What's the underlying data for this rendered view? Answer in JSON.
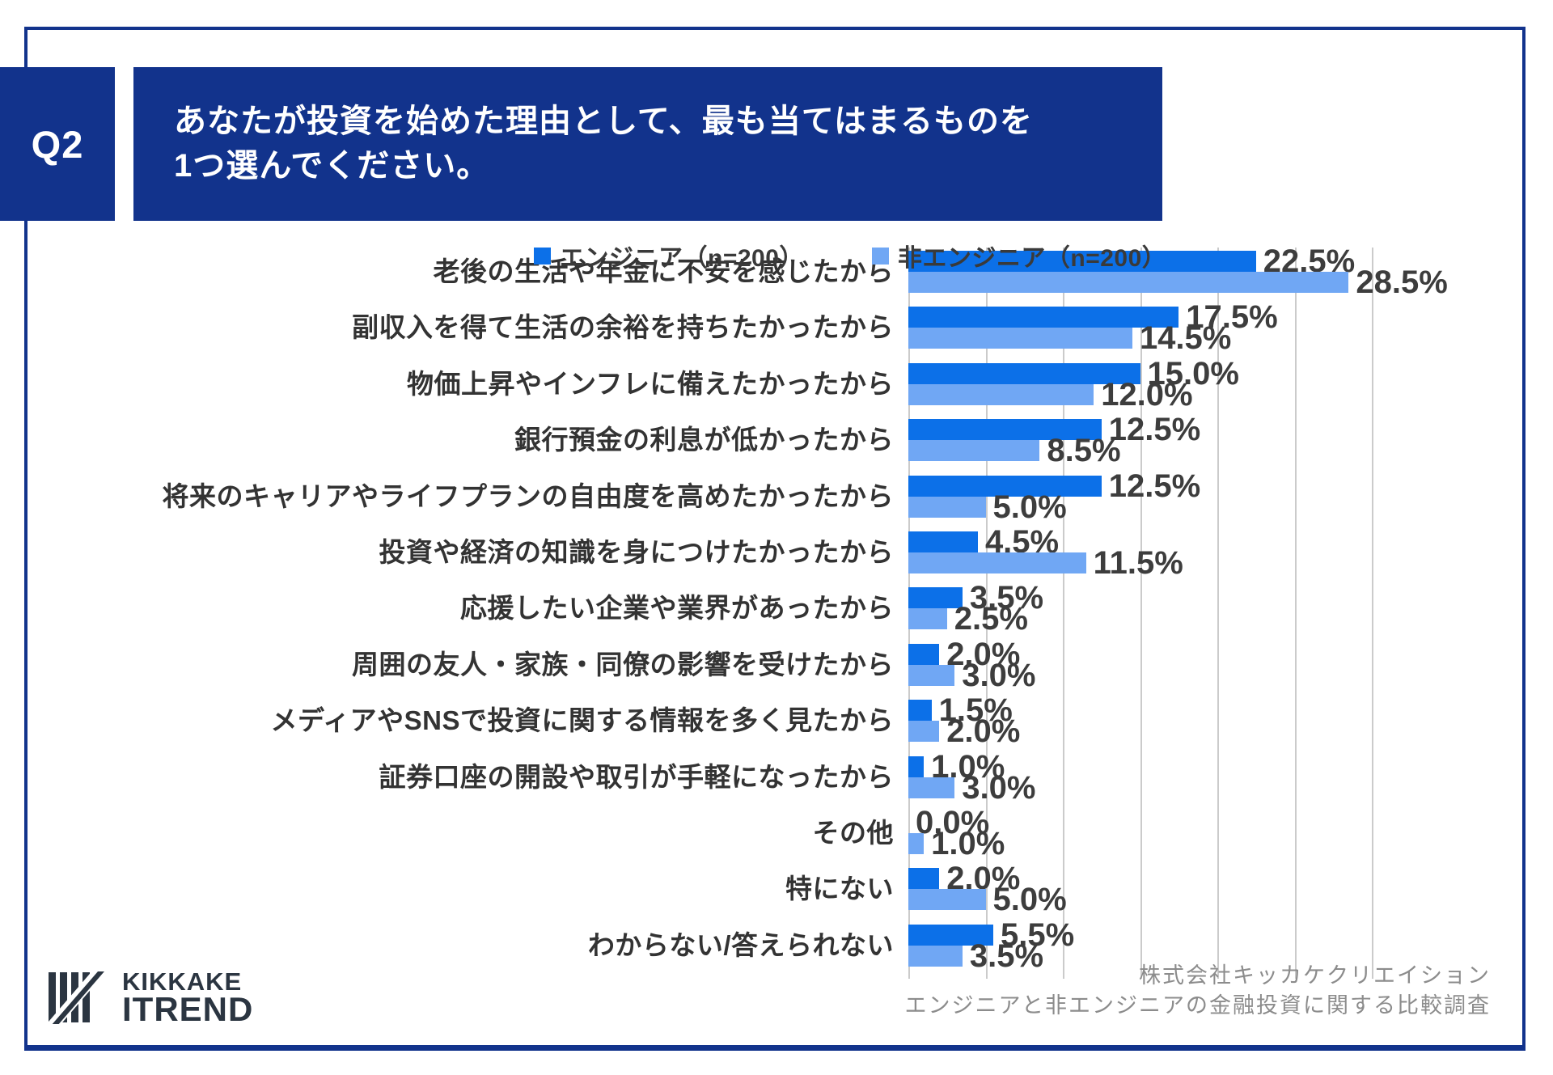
{
  "question": {
    "tag": "Q2",
    "title_line1": "あなたが投資を始めた理由として、最も当てはまるものを",
    "title_line2": "1つ選んでください。"
  },
  "legend_items": [
    {
      "label": "エンジニア（n=200）",
      "color": "#0C70E8"
    },
    {
      "label": "非エンジニア（n=200）",
      "color": "#70A7F4"
    }
  ],
  "chart_data": {
    "type": "bar",
    "orientation": "horizontal",
    "title": "",
    "categories": [
      "老後の生活や年金に不安を感じたから",
      "副収入を得て生活の余裕を持ちたかったから",
      "物価上昇やインフレに備えたかったから",
      "銀行預金の利息が低かったから",
      "将来のキャリアやライフプランの自由度を高めたかったから",
      "投資や経済の知識を身につけたかったから",
      "応援したい企業や業界があったから",
      "周囲の友人・家族・同僚の影響を受けたから",
      "メディアやSNSで投資に関する情報を多く見たから",
      "証券口座の開設や取引が手軽になったから",
      "その他",
      "特にない",
      "わからない/答えられない"
    ],
    "series": [
      {
        "name": "エンジニア（n=200）",
        "color": "#0C70E8",
        "values": [
          22.5,
          17.5,
          15.0,
          12.5,
          12.5,
          4.5,
          3.5,
          2.0,
          1.5,
          1.0,
          0.0,
          2.0,
          5.5
        ]
      },
      {
        "name": "非エンジニア（n=200）",
        "color": "#70A7F4",
        "values": [
          28.5,
          14.5,
          12.0,
          8.5,
          5.0,
          11.5,
          2.5,
          3.0,
          2.0,
          3.0,
          1.0,
          5.0,
          3.5
        ]
      }
    ],
    "xlim": [
      0,
      30
    ],
    "gridline_step": 5,
    "grid": true,
    "legend_position": "top",
    "value_label_format": "one-decimal-percent"
  },
  "footer": {
    "logo_line1": "KIKKAKE",
    "logo_line2": "ITREND",
    "credit_line1": "株式会社キッカケクリエイション",
    "credit_line2": "エンジニアと非エンジニアの金融投資に関する比較調査"
  },
  "colors": {
    "navy": "#12338C",
    "bar_dark": "#0C70E8",
    "bar_light": "#70A7F4",
    "grid": "#CBCBCB",
    "value_label": "#3D3D3D",
    "category_label": "#333333",
    "footer_gray": "#8C8C8C",
    "logo_ink": "#2B3541",
    "background": "#FFFFFF"
  }
}
